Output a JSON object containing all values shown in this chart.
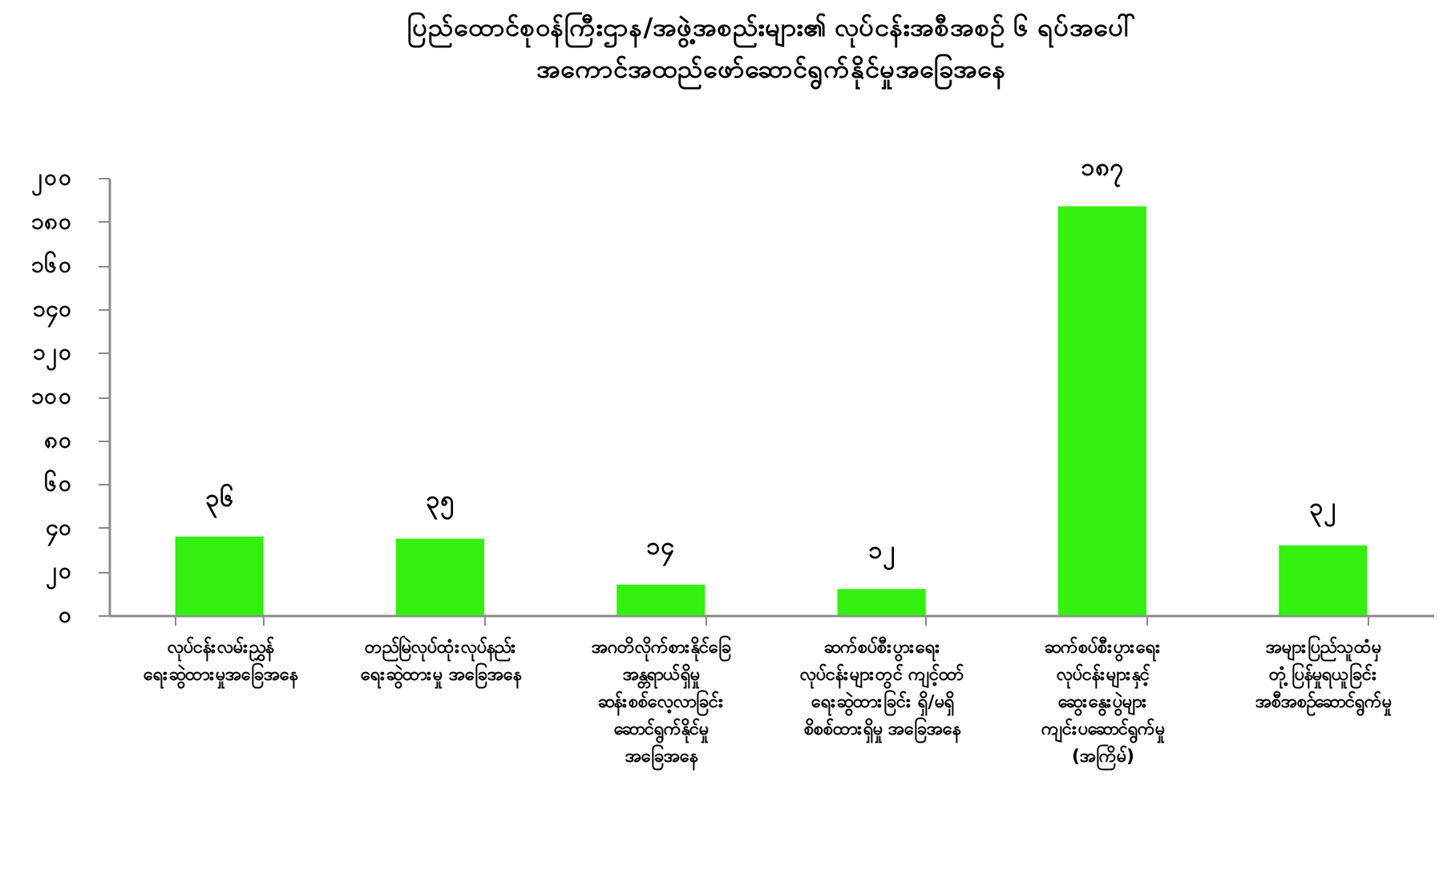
{
  "chart_data": {
    "type": "bar",
    "title": "ပြည်ထောင်စုဝန်ကြီးဌာန/အဖွဲ့အစည်းများ၏ လုပ်ငန်းအစီအစဉ် ၆ ရပ်အပေါ်\nအကောင်အထည်ဖော်ဆောင်ရွက်နိုင်မှုအခြေအနေ",
    "categories": [
      "လုပ်ငန်းလမ်းညွှန်\nရေးဆွဲထားမှုအခြေအနေ",
      "တည်မြဲလုပ်ထုံးလုပ်နည်း\nရေးဆွဲထားမှု အခြေအနေ",
      "အဂတိလိုက်စားနိုင်ခြေ\nအန္တရာယ်ရှိမှု\nဆန်းစစ်လေ့လာခြင်း\nဆောင်ရွက်နိုင်မှု\nအခြေအနေ",
      "ဆက်စပ်စီးပွားရေး\nလုပ်ငန်းများတွင် ကျင့်ဝတ်\nရေးဆွဲထားခြင်း ရှိ/မရှိ\nစိစစ်ထားရှိမှု အခြေအနေ",
      "ဆက်စပ်စီးပွားရေး\nလုပ်ငန်းများနှင့်\nဆွေးနွေးပွဲများ\nကျင်းပဆောင်ရွက်မှု\n(အကြိမ်)",
      "အများပြည်သူထံမှ\nတုံ့ပြန်မှုရယူခြင်း\nအစီအစဉ်ဆောင်ရွက်မှု"
    ],
    "values": [
      36,
      35,
      14,
      12,
      187,
      32
    ],
    "value_labels": [
      "၃၆",
      "၃၅",
      "၁၄",
      "၁၂",
      "၁၈၇",
      "၃၂"
    ],
    "color": "#33f00f",
    "ylim": [
      0,
      200
    ],
    "yticks": [
      {
        "value": 0,
        "label": "၀"
      },
      {
        "value": 20,
        "label": "၂၀"
      },
      {
        "value": 40,
        "label": "၄၀"
      },
      {
        "value": 60,
        "label": "၆၀"
      },
      {
        "value": 80,
        "label": "၈၀"
      },
      {
        "value": 100,
        "label": "၁၀၀"
      },
      {
        "value": 120,
        "label": "၁၂၀"
      },
      {
        "value": 140,
        "label": "၁၄၀"
      },
      {
        "value": 160,
        "label": "၁၆၀"
      },
      {
        "value": 180,
        "label": "၁၈၀"
      },
      {
        "value": 200,
        "label": "၂၀၀"
      }
    ]
  }
}
